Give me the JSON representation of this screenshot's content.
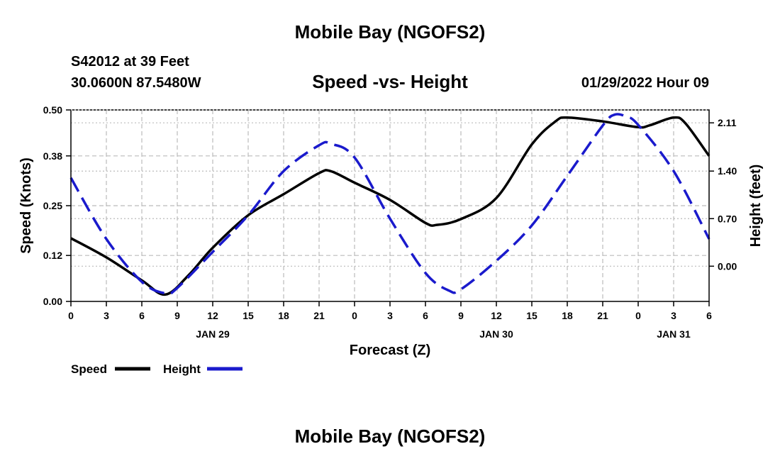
{
  "header": {
    "title": "Mobile Bay (NGOFS2)",
    "station": "S42012 at 39 Feet",
    "coords": "30.0600N  87.5480W",
    "subtitle": "Speed -vs- Height",
    "datetime": "01/29/2022 Hour 09"
  },
  "footer": {
    "title": "Mobile Bay (NGOFS2)"
  },
  "chart_data": {
    "type": "line",
    "title": "Speed -vs- Height",
    "xlabel": "Forecast (Z)",
    "ylabel": "Speed (Knots)",
    "y2label": "Height (feet)",
    "x_unit": "hours from 00Z Jan 29",
    "x_range": [
      0,
      54
    ],
    "xticks": [
      {
        "hour": 0,
        "label": "0"
      },
      {
        "hour": 3,
        "label": "3"
      },
      {
        "hour": 6,
        "label": "6"
      },
      {
        "hour": 9,
        "label": "9"
      },
      {
        "hour": 12,
        "label": "12"
      },
      {
        "hour": 15,
        "label": "15"
      },
      {
        "hour": 18,
        "label": "18"
      },
      {
        "hour": 21,
        "label": "21"
      },
      {
        "hour": 24,
        "label": "0"
      },
      {
        "hour": 27,
        "label": "3"
      },
      {
        "hour": 30,
        "label": "6"
      },
      {
        "hour": 33,
        "label": "9"
      },
      {
        "hour": 36,
        "label": "12"
      },
      {
        "hour": 39,
        "label": "15"
      },
      {
        "hour": 42,
        "label": "18"
      },
      {
        "hour": 45,
        "label": "21"
      },
      {
        "hour": 48,
        "label": "0"
      },
      {
        "hour": 51,
        "label": "3"
      },
      {
        "hour": 54,
        "label": "6"
      }
    ],
    "date_labels": [
      {
        "hour": 12,
        "label": "JAN 29"
      },
      {
        "hour": 36,
        "label": "JAN 30"
      },
      {
        "hour": 51,
        "label": "JAN 31"
      }
    ],
    "ylim": [
      0,
      0.5
    ],
    "yticks": [
      "0.00",
      "0.12",
      "0.25",
      "0.38",
      "0.50"
    ],
    "y2lim": [
      -0.5185,
      2.3
    ],
    "y2ticks": [
      "0.00",
      "0.70",
      "1.40",
      "2.11"
    ],
    "grid": true,
    "legend_placement": "bottom-left",
    "series": [
      {
        "name": "Speed",
        "axis": "left",
        "color": "#000000",
        "dash": "solid",
        "x": [
          0,
          3,
          6,
          8,
          10,
          12,
          15,
          18,
          21,
          22,
          24,
          27,
          30,
          31,
          33,
          36,
          39,
          41,
          42,
          45,
          48,
          49,
          51,
          52,
          54
        ],
        "y": [
          0.165,
          0.115,
          0.055,
          0.018,
          0.07,
          0.14,
          0.225,
          0.28,
          0.335,
          0.34,
          0.31,
          0.265,
          0.205,
          0.2,
          0.215,
          0.27,
          0.41,
          0.47,
          0.48,
          0.47,
          0.455,
          0.46,
          0.48,
          0.465,
          0.38
        ]
      },
      {
        "name": "Height",
        "axis": "right",
        "color": "#1a1acc",
        "dash": "dashed",
        "x": [
          0,
          3,
          6,
          8,
          9,
          12,
          15,
          18,
          21,
          22,
          24,
          27,
          30,
          32,
          33,
          36,
          39,
          42,
          45,
          46,
          47,
          48,
          51,
          54
        ],
        "y": [
          1.3,
          0.4,
          -0.23,
          -0.4,
          -0.32,
          0.21,
          0.75,
          1.4,
          1.78,
          1.8,
          1.6,
          0.7,
          -0.1,
          -0.36,
          -0.34,
          0.08,
          0.6,
          1.33,
          2.07,
          2.23,
          2.2,
          2.08,
          1.4,
          0.4
        ]
      }
    ]
  }
}
